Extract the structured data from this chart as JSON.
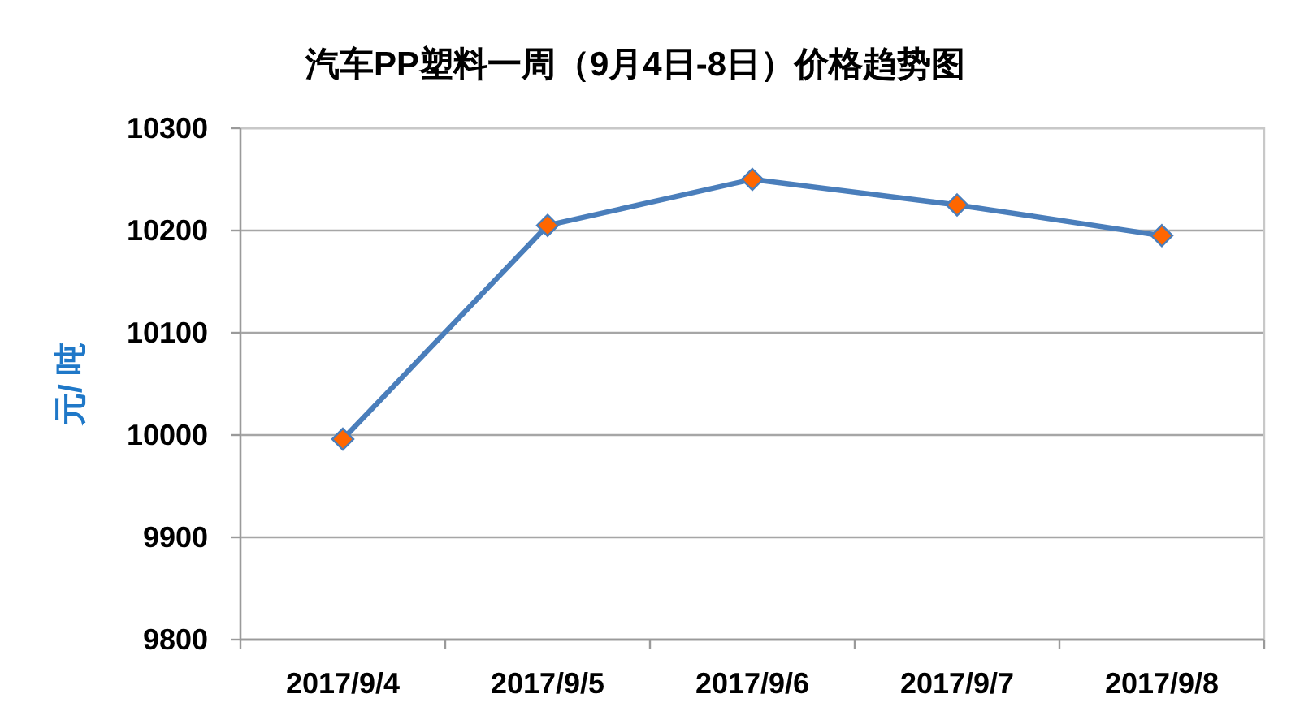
{
  "chart_data": {
    "type": "line",
    "title": "汽车PP塑料一周（9月4日-8日）价格趋势图",
    "ylabel": "元/ 吨",
    "categories": [
      "2017/9/4",
      "2017/9/5",
      "2017/9/6",
      "2017/9/7",
      "2017/9/8"
    ],
    "series": [
      {
        "color": "#4a7ebb",
        "colors": [
          "#ff6600",
          "#ff6600",
          "#ff6600",
          "#ff6600",
          "#ff6600"
        ],
        "values": [
          9996,
          10205,
          10250,
          10225,
          10195
        ]
      }
    ],
    "ylim": [
      9800,
      10300
    ],
    "yticks": [
      9800,
      9900,
      10000,
      10100,
      10200,
      10300
    ],
    "grid": "y",
    "marker": "diamond",
    "line_style": "solid"
  }
}
